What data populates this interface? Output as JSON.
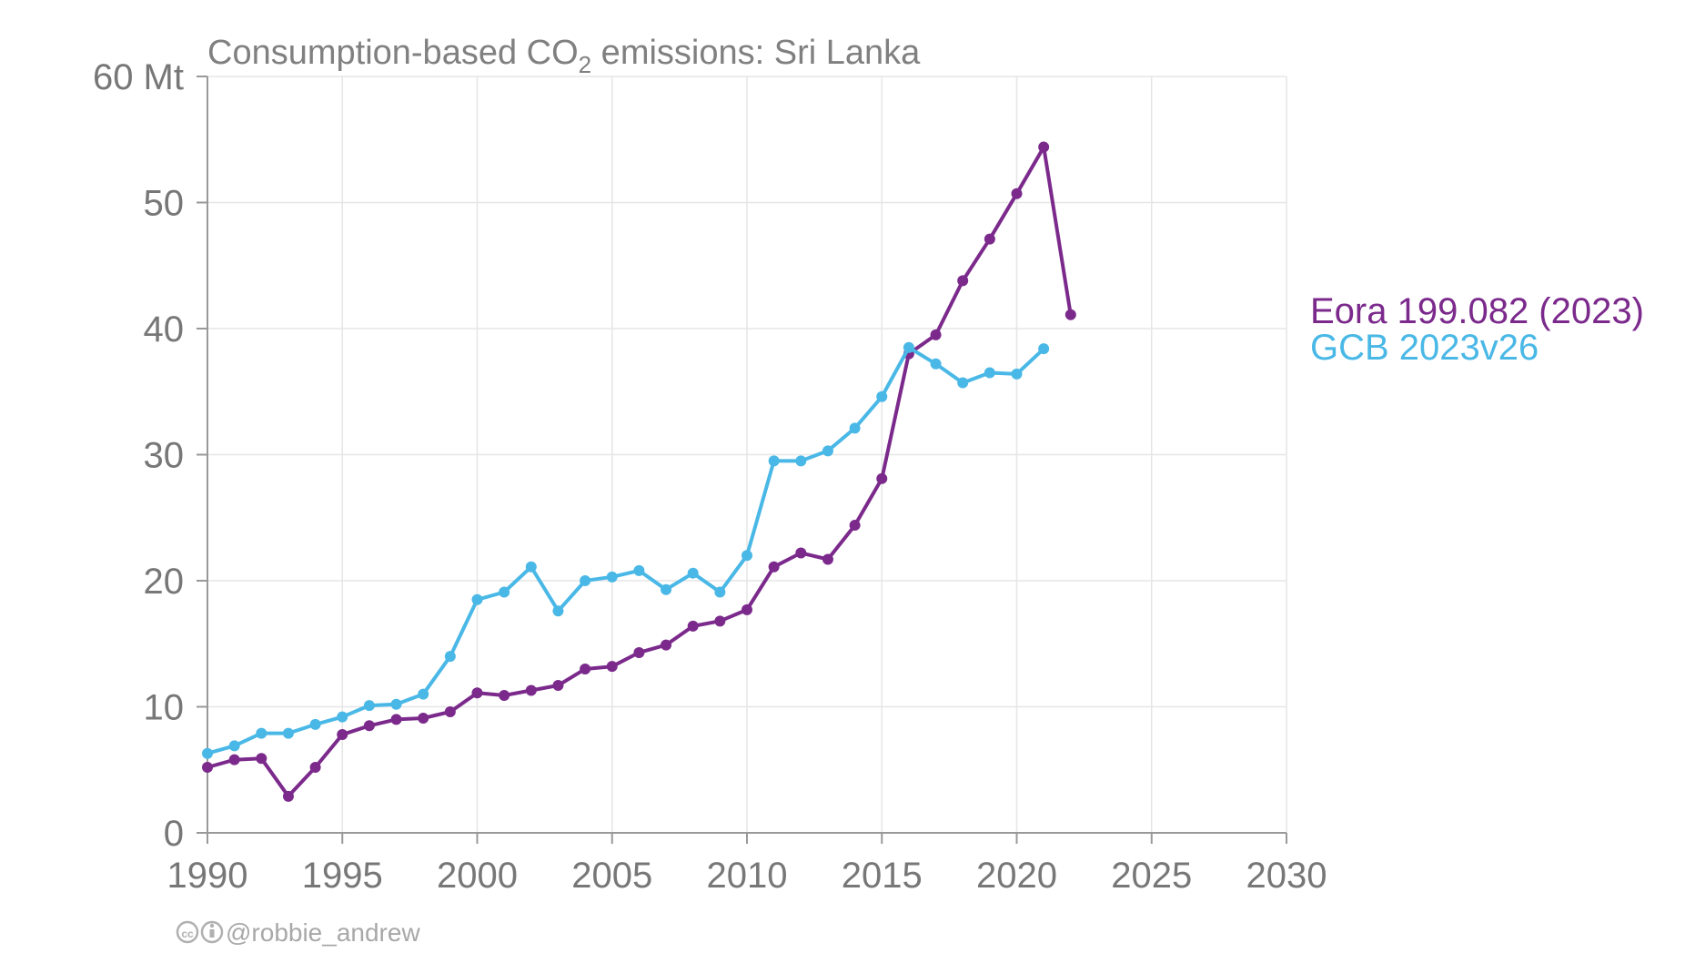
{
  "chart_data": {
    "type": "line",
    "title_main": "Consumption-based CO",
    "title_sub": "2",
    "title_rest": " emissions: Sri Lanka",
    "y_unit": "Mt",
    "xlim": [
      1990,
      2030
    ],
    "ylim": [
      0,
      60
    ],
    "x_ticks": [
      1990,
      1995,
      2000,
      2005,
      2010,
      2015,
      2020,
      2025,
      2030
    ],
    "y_ticks": [
      0,
      10,
      20,
      30,
      40,
      50,
      60
    ],
    "grid": true,
    "legend_position": "right",
    "series": [
      {
        "name": "Eora 199.082 (2023)",
        "color": "#7b2a8c",
        "x": [
          1990,
          1991,
          1992,
          1993,
          1994,
          1995,
          1996,
          1997,
          1998,
          1999,
          2000,
          2001,
          2002,
          2003,
          2004,
          2005,
          2006,
          2007,
          2008,
          2009,
          2010,
          2011,
          2012,
          2013,
          2014,
          2015,
          2016,
          2017,
          2018,
          2019,
          2020,
          2021,
          2022
        ],
        "y": [
          5.2,
          5.8,
          5.9,
          2.9,
          5.2,
          7.8,
          8.5,
          9.0,
          9.1,
          9.6,
          11.1,
          10.9,
          11.3,
          11.7,
          13.0,
          13.2,
          14.3,
          14.9,
          16.4,
          16.8,
          17.7,
          21.1,
          22.2,
          21.7,
          24.4,
          28.1,
          38.0,
          39.5,
          43.8,
          47.1,
          50.7,
          54.4,
          41.1
        ]
      },
      {
        "name": "GCB 2023v26",
        "color": "#4ab8e6",
        "x": [
          1990,
          1991,
          1992,
          1993,
          1994,
          1995,
          1996,
          1997,
          1998,
          1999,
          2000,
          2001,
          2002,
          2003,
          2004,
          2005,
          2006,
          2007,
          2008,
          2009,
          2010,
          2011,
          2012,
          2013,
          2014,
          2015,
          2016,
          2017,
          2018,
          2019,
          2020,
          2021
        ],
        "y": [
          6.3,
          6.9,
          7.9,
          7.9,
          8.6,
          9.2,
          10.1,
          10.2,
          11.0,
          14.0,
          18.5,
          19.1,
          21.1,
          17.6,
          20.0,
          20.3,
          20.8,
          19.3,
          20.6,
          19.1,
          22.0,
          29.5,
          29.5,
          30.3,
          32.1,
          34.6,
          38.5,
          37.2,
          35.7,
          36.5,
          36.4,
          38.4
        ]
      }
    ],
    "credit_symbols": "cc i",
    "credit_text": "@robbie_andrew"
  },
  "colors": {
    "axis": "#999999",
    "grid": "#e6e6e6",
    "text": "#777777"
  }
}
